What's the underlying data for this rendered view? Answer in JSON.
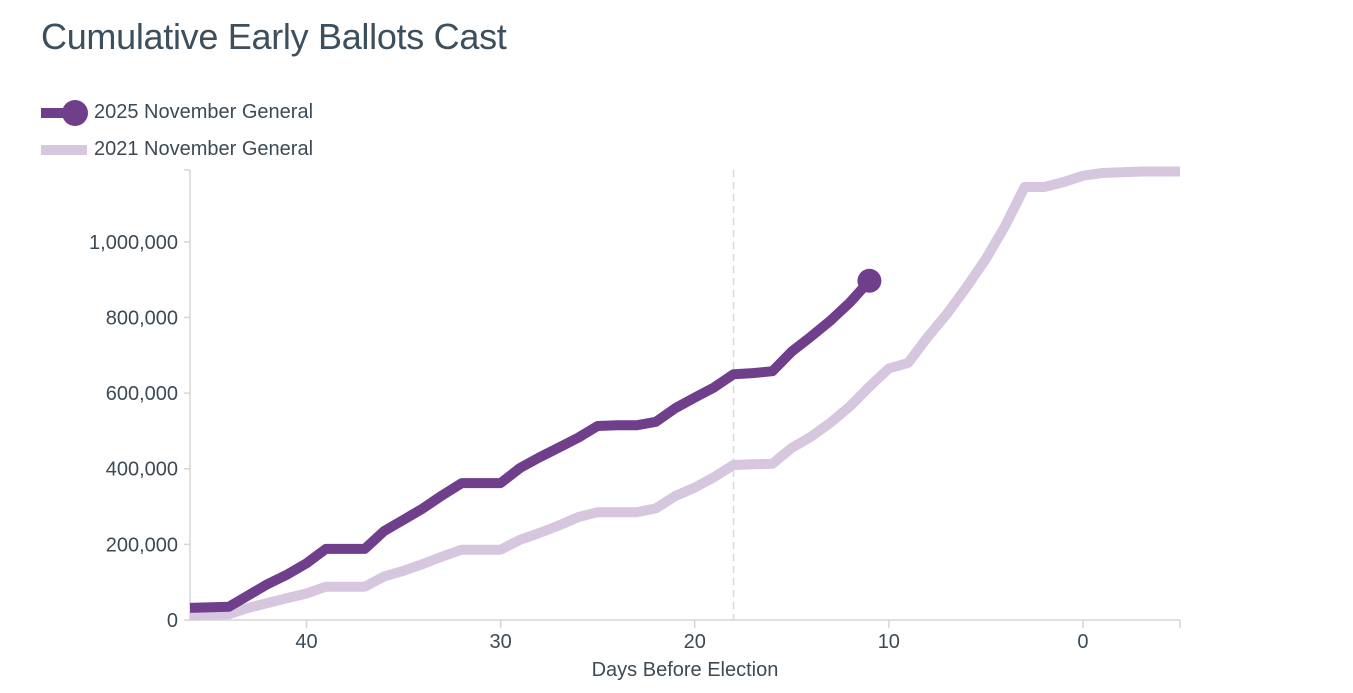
{
  "chart_data": {
    "type": "line",
    "title": "Cumulative Early Ballots Cast",
    "xlabel": "Days Before Election",
    "ylabel": "",
    "xlim": [
      46,
      -5
    ],
    "ylim": [
      0,
      1190000
    ],
    "xticks": [
      40,
      30,
      20,
      10,
      0
    ],
    "yticks": [
      0,
      200000,
      400000,
      600000,
      800000,
      1000000
    ],
    "ytick_labels": [
      "0",
      "200,000",
      "400,000",
      "600,000",
      "800,000",
      "1,000,000"
    ],
    "reference_line_x": 18,
    "series": [
      {
        "name": "2025 November General",
        "color": "#6f3f8c",
        "end_marker": true,
        "x": [
          46,
          44,
          42,
          41,
          40,
          39,
          38,
          37,
          36,
          35,
          34,
          33,
          32,
          31,
          30,
          29,
          28,
          27,
          26,
          25,
          24,
          23,
          22,
          21,
          20,
          19,
          18,
          17,
          16,
          15,
          14,
          13,
          12,
          11
        ],
        "y": [
          32000,
          35000,
          95000,
          120000,
          150000,
          188000,
          188000,
          188000,
          235000,
          265000,
          295000,
          330000,
          362000,
          362000,
          362000,
          402000,
          430000,
          456000,
          482000,
          513000,
          515000,
          515000,
          524000,
          560000,
          588000,
          615000,
          650000,
          653000,
          658000,
          710000,
          750000,
          792000,
          840000,
          897000
        ]
      },
      {
        "name": "2021 November General",
        "color": "#d6c6de",
        "end_marker": false,
        "x": [
          46,
          44,
          43,
          42,
          41,
          40,
          39,
          38,
          37,
          36,
          35,
          34,
          33,
          32,
          31,
          30,
          29,
          28,
          27,
          26,
          25,
          24,
          23,
          22,
          21,
          20,
          19,
          18,
          17,
          16,
          15,
          14,
          13,
          12,
          11,
          10,
          9,
          8,
          7,
          6,
          5,
          4,
          3,
          2,
          1,
          0,
          -1,
          -3,
          -5
        ],
        "y": [
          12000,
          15000,
          32000,
          45000,
          58000,
          70000,
          88000,
          88000,
          88000,
          115000,
          130000,
          148000,
          168000,
          186000,
          186000,
          186000,
          212000,
          230000,
          250000,
          272000,
          285000,
          285000,
          285000,
          295000,
          328000,
          350000,
          378000,
          410000,
          412000,
          413000,
          455000,
          485000,
          522000,
          565000,
          617000,
          665000,
          680000,
          748000,
          810000,
          880000,
          955000,
          1043000,
          1145000,
          1145000,
          1158000,
          1175000,
          1182000,
          1186000,
          1186000
        ]
      }
    ]
  }
}
